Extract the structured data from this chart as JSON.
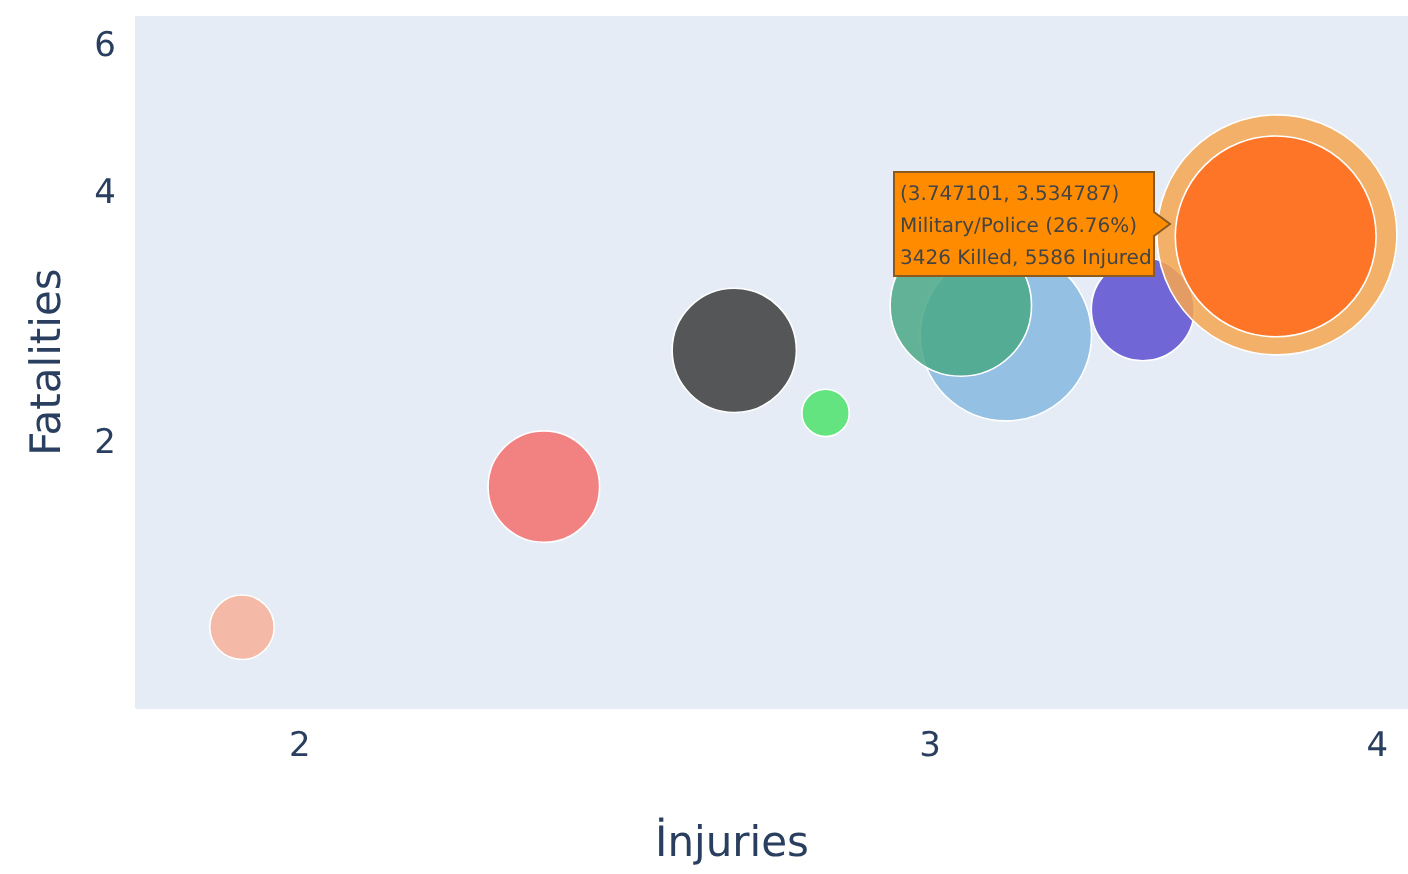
{
  "chart_data": {
    "type": "bubble",
    "xlabel": "İnjuries",
    "ylabel": "Fatalities",
    "log": "xy",
    "grid": false,
    "xlim": [
      1.8,
      4.08
    ],
    "xticks": [
      2,
      3,
      4
    ],
    "ylim": [
      0.96,
      6.5
    ],
    "yticks": [
      2,
      4,
      6
    ],
    "x": [
      1.927,
      2.34,
      2.645,
      2.805,
      3.15,
      3.06,
      3.44,
      3.75,
      3.747101
    ],
    "values": [
      1.2,
      1.77,
      2.58,
      2.17,
      2.69,
      2.92,
      2.89,
      3.55,
      3.534787
    ],
    "sizes": [
      0.072,
      0.216,
      0.268,
      0.039,
      0.51,
      0.347,
      0.184,
      1,
      0.7
    ],
    "colors": [
      "#f7b199",
      "#f56e6c",
      "#3c3c3c",
      "#4ee36c",
      "#86b8e0",
      "#4aa886",
      "#5c4fd0",
      "#f6a650",
      "#ff6b1c"
    ],
    "annotations": [
      "(3.747101, 3.534787)\nMilitary/Police (26.76%)\n3426 Killed, 5586 Injured"
    ]
  }
}
